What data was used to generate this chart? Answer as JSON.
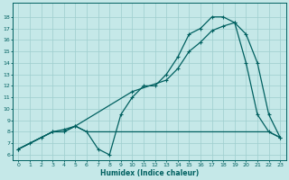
{
  "line1_x": [
    0,
    1,
    2,
    3,
    4,
    5,
    6,
    7,
    8,
    9,
    10,
    11,
    12,
    13,
    14,
    15,
    16,
    17,
    18,
    19,
    20,
    21,
    22,
    23
  ],
  "line1_y": [
    6.5,
    7.0,
    7.5,
    8.0,
    8.0,
    8.5,
    8.0,
    6.5,
    6.0,
    9.5,
    11.0,
    12.0,
    12.0,
    13.0,
    14.5,
    16.5,
    17.0,
    18.0,
    18.0,
    17.5,
    16.5,
    14.0,
    9.5,
    7.5
  ],
  "line2_x": [
    0,
    3,
    4,
    5,
    10,
    13,
    14,
    15,
    16,
    17,
    18,
    19,
    20,
    21,
    22,
    23
  ],
  "line2_y": [
    6.5,
    8.0,
    8.2,
    8.5,
    11.5,
    12.5,
    13.5,
    15.0,
    15.8,
    16.8,
    17.2,
    17.5,
    14.0,
    9.5,
    8.0,
    7.5
  ],
  "line3_x": [
    0,
    2,
    3,
    4,
    5,
    6,
    7,
    8,
    9,
    10,
    11,
    12,
    13,
    14,
    15,
    16,
    17,
    18,
    19,
    20,
    21,
    22,
    23
  ],
  "line3_y": [
    6.5,
    7.5,
    8.0,
    8.0,
    8.5,
    8.0,
    8.0,
    8.0,
    8.0,
    8.0,
    8.0,
    8.0,
    8.0,
    8.0,
    8.0,
    8.0,
    8.0,
    8.0,
    8.0,
    8.0,
    8.0,
    8.0,
    7.5
  ],
  "line_color": "#006060",
  "bg_color": "#c5e8e8",
  "grid_color": "#9ecece",
  "xlabel": "Humidex (Indice chaleur)",
  "xlim": [
    -0.5,
    23.5
  ],
  "ylim": [
    5.5,
    19.2
  ],
  "xticks": [
    0,
    1,
    2,
    3,
    4,
    5,
    6,
    7,
    8,
    9,
    10,
    11,
    12,
    13,
    14,
    15,
    16,
    17,
    18,
    19,
    20,
    21,
    22,
    23
  ],
  "yticks": [
    6,
    7,
    8,
    9,
    10,
    11,
    12,
    13,
    14,
    15,
    16,
    17,
    18
  ],
  "markersize": 3.0,
  "linewidth": 0.9
}
